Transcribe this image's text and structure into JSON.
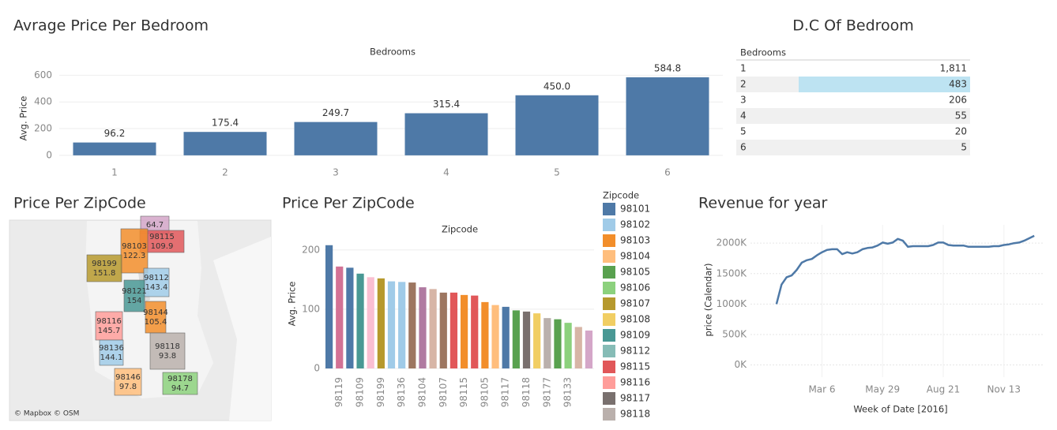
{
  "chart_data": [
    {
      "type": "bar",
      "title": "Avrage Price Per Bedroom",
      "header": "Bedrooms",
      "ylabel": "Avg. Price",
      "categories": [
        "1",
        "2",
        "3",
        "4",
        "5",
        "6"
      ],
      "values": [
        96.2,
        175.4,
        249.7,
        315.4,
        450.0,
        584.8
      ],
      "value_labels": [
        "96.2",
        "175.4",
        "249.7",
        "315.4",
        "450.0",
        "584.8"
      ],
      "color": "#4e79a7",
      "ylim": [
        -48,
        620
      ],
      "yticks": [
        0,
        200,
        400,
        600
      ],
      "grid": true
    },
    {
      "type": "text_table",
      "title": "D.C Of Bedroom",
      "header": "Bedrooms",
      "categories": [
        "1",
        "2",
        "3",
        "4",
        "5",
        "6"
      ],
      "values": [
        1811,
        483,
        206,
        55,
        20,
        5
      ],
      "value_labels": [
        "1,811",
        "483",
        "206",
        "55",
        "20",
        "5"
      ],
      "highlight": "2",
      "highlight_color": "#bde3f2"
    },
    {
      "type": "map",
      "title": "Price Per ZipCode",
      "attribution": "© Mapbox © OSM",
      "regions": [
        {
          "label": null,
          "value": 64.7,
          "color": "#d4a6c8"
        },
        {
          "label": "98115",
          "value": 109.9,
          "color": "#e15759"
        },
        {
          "label": "98103",
          "value": 122.3,
          "color": "#f28e2b"
        },
        {
          "label": "98199",
          "value": 151.8,
          "color": "#b6992d"
        },
        {
          "label": "98112",
          "value": 143.4,
          "color": "#a0cbe8"
        },
        {
          "label": "98121",
          "value": 154.0,
          "color": "#499894"
        },
        {
          "label": "98116",
          "value": 145.7,
          "color": "#ff9d9a"
        },
        {
          "label": "98144",
          "value": 105.4,
          "color": "#f28e2b"
        },
        {
          "label": "98136",
          "value": 144.1,
          "color": "#a0cbe8"
        },
        {
          "label": "98118",
          "value": 93.8,
          "color": "#bab0ac"
        },
        {
          "label": "98146",
          "value": 97.8,
          "color": "#ffbe7d"
        },
        {
          "label": "98178",
          "value": 94.7,
          "color": "#8cd17d"
        }
      ]
    },
    {
      "type": "bar",
      "title": "Price Per ZipCode",
      "header": "Zipcode",
      "ylabel": "Avg. Price",
      "categories": [
        null,
        "98119",
        null,
        "98109",
        null,
        "98199",
        null,
        "98136",
        null,
        "98104",
        null,
        "98107",
        null,
        "98115",
        null,
        "98105",
        null,
        "98117",
        null,
        "98118",
        null,
        "98177",
        null,
        "98133",
        null,
        null
      ],
      "values": [
        208,
        172,
        170,
        160,
        154,
        152,
        147,
        146,
        145,
        137,
        134,
        128,
        128,
        124,
        123,
        112,
        107,
        104,
        98,
        96,
        93,
        85,
        83,
        77,
        70,
        64
      ],
      "colors": [
        "#4e79a7",
        "#d37295",
        "#4e79a7",
        "#499894",
        "#fabfd2",
        "#b6992d",
        "#a0cbe8",
        "#a0cbe8",
        "#9d7660",
        "#b07aa1",
        "#d7b5a6",
        "#9d7660",
        "#e15759",
        "#f28e2b",
        "#e15759",
        "#f28e2b",
        "#ffbe7d",
        "#4e79a7",
        "#59a14f",
        "#79706e",
        "#f1ce63",
        "#bab0ac",
        "#59a14f",
        "#8cd17d",
        "#d7b5a6",
        "#d4a6c8"
      ],
      "ylim": [
        -8,
        225
      ],
      "yticks": [
        0,
        100,
        200
      ],
      "grid": true,
      "legend": {
        "title": "Zipcode",
        "items": [
          {
            "name": "98101",
            "color": "#4e79a7"
          },
          {
            "name": "98102",
            "color": "#a0cbe8"
          },
          {
            "name": "98103",
            "color": "#f28e2b"
          },
          {
            "name": "98104",
            "color": "#ffbe7d"
          },
          {
            "name": "98105",
            "color": "#59a14f"
          },
          {
            "name": "98106",
            "color": "#8cd17d"
          },
          {
            "name": "98107",
            "color": "#b6992d"
          },
          {
            "name": "98108",
            "color": "#f1ce63"
          },
          {
            "name": "98109",
            "color": "#499894"
          },
          {
            "name": "98112",
            "color": "#86bcb6"
          },
          {
            "name": "98115",
            "color": "#e15759"
          },
          {
            "name": "98116",
            "color": "#ff9d9a"
          },
          {
            "name": "98117",
            "color": "#79706e"
          },
          {
            "name": "98118",
            "color": "#bab0ac"
          }
        ]
      }
    },
    {
      "type": "line",
      "title": "Revenue for year",
      "xlabel": "Week of Date [2016]",
      "ylabel": "price (Calendar)",
      "x": [
        "2016-01-03",
        "2016-01-10",
        "2016-01-17",
        "2016-01-24",
        "2016-01-31",
        "2016-02-07",
        "2016-02-14",
        "2016-02-21",
        "2016-02-28",
        "2016-03-06",
        "2016-03-13",
        "2016-03-20",
        "2016-03-27",
        "2016-04-03",
        "2016-04-10",
        "2016-04-17",
        "2016-04-24",
        "2016-05-01",
        "2016-05-08",
        "2016-05-15",
        "2016-05-22",
        "2016-05-29",
        "2016-06-05",
        "2016-06-12",
        "2016-06-19",
        "2016-06-26",
        "2016-07-03",
        "2016-07-10",
        "2016-07-17",
        "2016-07-24",
        "2016-07-31",
        "2016-08-07",
        "2016-08-14",
        "2016-08-21",
        "2016-08-28",
        "2016-09-04",
        "2016-09-11",
        "2016-09-18",
        "2016-09-25",
        "2016-10-02",
        "2016-10-09",
        "2016-10-16",
        "2016-10-23",
        "2016-10-30",
        "2016-11-06",
        "2016-11-13",
        "2016-11-20",
        "2016-11-27",
        "2016-12-04",
        "2016-12-11",
        "2016-12-18",
        "2016-12-25"
      ],
      "series": [
        {
          "name": "price (Calendar)",
          "color": "#4e79a7",
          "values": [
            1000000,
            1320000,
            1440000,
            1470000,
            1560000,
            1680000,
            1720000,
            1740000,
            1800000,
            1850000,
            1890000,
            1900000,
            1900000,
            1820000,
            1850000,
            1830000,
            1850000,
            1900000,
            1920000,
            1930000,
            1960000,
            2010000,
            1990000,
            2010000,
            2070000,
            2040000,
            1940000,
            1950000,
            1950000,
            1950000,
            1950000,
            1970000,
            2010000,
            2010000,
            1970000,
            1960000,
            1960000,
            1960000,
            1940000,
            1940000,
            1940000,
            1940000,
            1940000,
            1950000,
            1950000,
            1970000,
            1980000,
            2000000,
            2010000,
            2040000,
            2080000,
            2120000
          ]
        }
      ],
      "xlim": [
        "2015-11-28",
        "2017-01-08"
      ],
      "xticks": [
        {
          "value": "2016-03-06",
          "label": "Mar 6"
        },
        {
          "value": "2016-05-29",
          "label": "May 29"
        },
        {
          "value": "2016-08-21",
          "label": "Aug 21"
        },
        {
          "value": "2016-11-13",
          "label": "Nov 13"
        }
      ],
      "ylim": [
        -200000,
        2300000
      ],
      "yticks": [
        {
          "value": 0,
          "label": "0K"
        },
        {
          "value": 500000,
          "label": "500K"
        },
        {
          "value": 1000000,
          "label": "1000K"
        },
        {
          "value": 1500000,
          "label": "1500K"
        },
        {
          "value": 2000000,
          "label": "2000K"
        }
      ],
      "grid": true
    }
  ]
}
